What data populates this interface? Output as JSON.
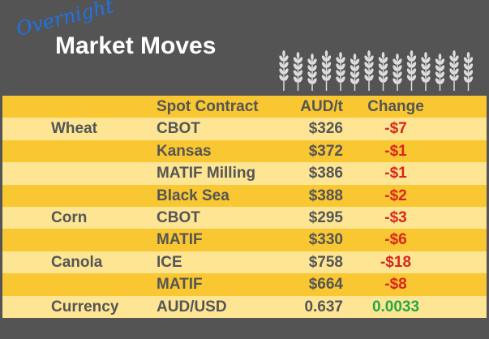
{
  "header": {
    "kicker": "Overnight",
    "title": "Market Moves"
  },
  "table": {
    "columns": [
      "Spot Contract",
      "AUD/t",
      "Change"
    ],
    "rows": [
      [
        "Wheat",
        "CBOT",
        "$326",
        "-$7"
      ],
      [
        null,
        "Kansas",
        "$372",
        "-$1"
      ],
      [
        null,
        "MATIF Milling",
        "$386",
        "-$1"
      ],
      [
        null,
        "Black Sea",
        "$388",
        "-$2"
      ],
      [
        "Corn",
        "CBOT",
        "$295",
        "-$3"
      ],
      [
        null,
        "MATIF",
        "$330",
        "-$6"
      ],
      [
        "Canola",
        "ICE",
        "$758",
        "-$18"
      ],
      [
        null,
        "MATIF",
        "$664",
        "-$8"
      ],
      [
        "Currency",
        "AUD/USD",
        "0.637",
        "0.0033"
      ]
    ]
  }
}
